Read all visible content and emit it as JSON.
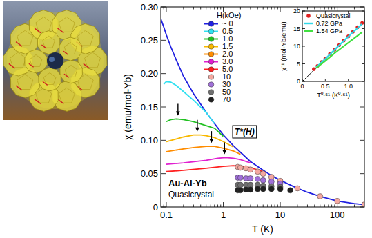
{
  "chart_data": [
    {
      "type": "line",
      "log": "x",
      "grid": false,
      "x_label": "T (K)",
      "y_label": "χ (emu/mol-Yb)",
      "xlim": [
        0.08,
        300
      ],
      "ylim": [
        0,
        0.3
      ],
      "xticks": [
        0.1,
        1,
        10,
        100
      ],
      "yticks": [
        0,
        0.05,
        {
          "value": 0.1,
          "label": "0.10"
        },
        0.15,
        {
          "value": 0.2,
          "label": "0.20"
        },
        0.25,
        {
          "value": 0.3,
          "label": "0.30"
        }
      ],
      "legend": "upper-center",
      "legend_title": "H(kOe)",
      "sample": "Au-Al-Yb",
      "sample_kind": "Quasicrystal",
      "annotation": "T*(H)",
      "t_star": {
        "x": [
          0.16,
          0.35,
          0.62,
          1.05
        ],
        "y": [
          0.135,
          0.111,
          0.094,
          0.077
        ]
      },
      "series": [
        {
          "name": "~ 0",
          "color": "#2020e0",
          "line_style": "solid",
          "marker": "none",
          "x": [
            0.08,
            0.09,
            0.1,
            0.12,
            0.15,
            0.2,
            0.3,
            0.5,
            0.7,
            1,
            1.5,
            2,
            3,
            5,
            7,
            10,
            20,
            30,
            50,
            100,
            200,
            300
          ],
          "values": [
            0.282,
            0.27,
            0.258,
            0.24,
            0.22,
            0.196,
            0.17,
            0.142,
            0.125,
            0.108,
            0.092,
            0.082,
            0.068,
            0.055,
            0.047,
            0.04,
            0.028,
            0.022,
            0.016,
            0.009,
            0.005,
            0.0035
          ]
        },
        {
          "name": "0.5",
          "color": "#30e0f0",
          "line_style": "solid",
          "marker": "none",
          "x": [
            0.09,
            0.1,
            0.12,
            0.15,
            0.2,
            0.3,
            0.5,
            0.7
          ],
          "values": [
            0.184,
            0.188,
            0.187,
            0.182,
            0.173,
            0.16,
            0.142,
            0.125
          ]
        },
        {
          "name": "1.0",
          "color": "#20c020",
          "line_style": "solid",
          "marker": "none",
          "x": [
            0.1,
            0.12,
            0.15,
            0.2,
            0.3,
            0.5,
            0.7,
            1
          ],
          "values": [
            0.128,
            0.131,
            0.132,
            0.131,
            0.128,
            0.122,
            0.118,
            0.106
          ]
        },
        {
          "name": "1.5",
          "color": "#f8b800",
          "line_style": "solid",
          "marker": "none",
          "x": [
            0.1,
            0.15,
            0.2,
            0.3,
            0.4,
            0.5,
            0.7,
            1,
            1.5
          ],
          "values": [
            0.098,
            0.102,
            0.105,
            0.108,
            0.108,
            0.107,
            0.104,
            0.098,
            0.09
          ]
        },
        {
          "name": "2.0",
          "color": "#ff8c00",
          "line_style": "solid",
          "marker": "none",
          "x": [
            0.1,
            0.2,
            0.3,
            0.5,
            0.7,
            1,
            1.5,
            2
          ],
          "values": [
            0.083,
            0.087,
            0.089,
            0.091,
            0.091,
            0.088,
            0.084,
            0.079
          ]
        },
        {
          "name": "3.0",
          "color": "#e020d0",
          "line_style": "solid",
          "marker": "none",
          "x": [
            0.1,
            0.2,
            0.5,
            0.8,
            1.1,
            1.5,
            2,
            3
          ],
          "values": [
            0.064,
            0.066,
            0.07,
            0.073,
            0.074,
            0.073,
            0.071,
            0.066
          ]
        },
        {
          "name": "5.0",
          "color": "#ff2020",
          "line_style": "solid",
          "marker": "none",
          "x": [
            0.1,
            0.2,
            0.5,
            1,
            1.5,
            2,
            3,
            5
          ],
          "values": [
            0.053,
            0.055,
            0.058,
            0.061,
            0.062,
            0.061,
            0.059,
            0.053
          ]
        },
        {
          "name": "10",
          "color": "#f4a8a0",
          "line_style": "none",
          "marker": "circle",
          "x": [
            1.8,
            2,
            2.5,
            3,
            4,
            5,
            7,
            10,
            20,
            50,
            100,
            300
          ],
          "values": [
            0.06,
            0.059,
            0.058,
            0.056,
            0.053,
            0.05,
            0.045,
            0.039,
            0.028,
            0.016,
            0.009,
            0.0035
          ]
        },
        {
          "name": "30",
          "color": "#a070d8",
          "line_style": "none",
          "marker": "circle",
          "x": [
            1.8,
            2,
            2.5,
            3,
            4,
            5,
            7,
            10
          ],
          "values": [
            0.044,
            0.044,
            0.043,
            0.043,
            0.042,
            0.04,
            0.038,
            0.035
          ]
        },
        {
          "name": "50",
          "color": "#707070",
          "line_style": "none",
          "marker": "circle",
          "x": [
            1.8,
            2,
            2.5,
            3,
            4,
            5,
            7,
            10
          ],
          "values": [
            0.033,
            0.033,
            0.033,
            0.033,
            0.033,
            0.032,
            0.031,
            0.03
          ]
        },
        {
          "name": "70",
          "color": "#202020",
          "line_style": "none",
          "marker": "circle",
          "x": [
            1.8,
            2,
            2.5,
            3,
            4,
            5,
            7,
            10,
            15
          ],
          "values": [
            0.025,
            0.025,
            0.026,
            0.026,
            0.027,
            0.027,
            0.027,
            0.027,
            0.025
          ]
        }
      ]
    },
    {
      "type": "line",
      "grid": false,
      "x_label": "T⁰·⁵¹ (K⁰·⁵¹)",
      "y_label": "χ⁻¹ (mol-Yb/emu)",
      "xlim": [
        0,
        1.35
      ],
      "ylim": [
        0,
        20
      ],
      "xticks": [
        0,
        0.5,
        {
          "value": 1,
          "label": "1.0"
        }
      ],
      "yticks": [
        0,
        5,
        10,
        15,
        20
      ],
      "legend": "upper-left",
      "series": [
        {
          "color": "#000000",
          "type": "line",
          "line_style": "solid",
          "marker": "none",
          "x": [
            0,
            1.3
          ],
          "values": [
            0,
            16.5
          ]
        },
        {
          "name": "Quasicrystal",
          "color": "#e02020",
          "type": "scatter",
          "line_style": "none",
          "marker": "circle",
          "x": [
            0.25,
            0.33,
            0.42,
            0.5,
            0.6,
            0.7,
            0.8,
            0.9,
            1.0,
            1.1,
            1.2,
            1.3
          ],
          "values": [
            3.5,
            4.4,
            5.5,
            6.5,
            7.8,
            9.0,
            10.3,
            11.6,
            12.8,
            14.1,
            15.4,
            16.6
          ]
        },
        {
          "name": "0.72 GPa",
          "color": "#30d8e8",
          "type": "line",
          "line_style": "solid",
          "marker": "none",
          "x": [
            0.3,
            0.5,
            0.7,
            0.9,
            1.1,
            1.3
          ],
          "values": [
            4.0,
            6.4,
            9.0,
            11.5,
            14.0,
            16.3
          ]
        },
        {
          "name": "1.54 GPa",
          "color": "#40e040",
          "type": "line",
          "line_style": "solid",
          "marker": "none",
          "x": [
            0.3,
            0.5,
            0.7,
            0.9,
            1.1,
            1.3
          ],
          "values": [
            3.8,
            5.8,
            8.0,
            10.0,
            12.0,
            14.0
          ]
        }
      ]
    }
  ]
}
